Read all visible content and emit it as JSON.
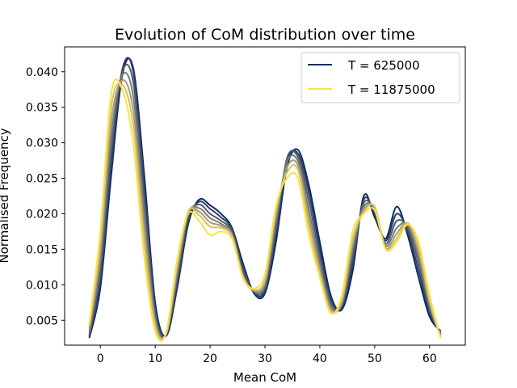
{
  "chart_data": {
    "type": "line",
    "title": "Evolution of CoM distribution over time",
    "xlabel": "Mean CoM",
    "ylabel": "Normalised Frequency",
    "xlim": [
      -6.5,
      66.5
    ],
    "ylim": [
      0.0015,
      0.0435
    ],
    "xticks": [
      0,
      10,
      20,
      30,
      40,
      50,
      60
    ],
    "yticks": [
      0.005,
      0.01,
      0.015,
      0.02,
      0.025,
      0.03,
      0.035,
      0.04
    ],
    "ytick_labels": [
      "0.005",
      "0.010",
      "0.015",
      "0.020",
      "0.025",
      "0.030",
      "0.035",
      "0.040"
    ],
    "grid": false,
    "legend_position": "top-right",
    "legend": [
      {
        "label": "T = 625000",
        "color": "#0b2b5c"
      },
      {
        "label": "T = 11875000",
        "color": "#fbe144"
      }
    ],
    "x": [
      -2,
      0,
      2,
      4,
      6,
      8,
      10,
      12,
      14,
      16,
      18,
      20,
      22,
      24,
      26,
      28,
      30,
      32,
      34,
      36,
      38,
      40,
      42,
      44,
      46,
      48,
      50,
      52,
      54,
      56,
      58,
      60,
      62
    ],
    "series": [
      {
        "name": "T = 625000",
        "color": "#0b2b5c",
        "values": [
          0.0025,
          0.0095,
          0.0255,
          0.0395,
          0.0405,
          0.0255,
          0.0075,
          0.0028,
          0.0095,
          0.0185,
          0.022,
          0.0212,
          0.02,
          0.018,
          0.013,
          0.0088,
          0.0088,
          0.016,
          0.0265,
          0.029,
          0.024,
          0.016,
          0.0085,
          0.0065,
          0.012,
          0.0225,
          0.0195,
          0.0165,
          0.021,
          0.017,
          0.011,
          0.0055,
          0.0035
        ]
      },
      {
        "color": "#2b3f6e",
        "values": [
          0.0027,
          0.0105,
          0.027,
          0.0403,
          0.04,
          0.024,
          0.0068,
          0.003,
          0.01,
          0.019,
          0.0217,
          0.0207,
          0.0195,
          0.0178,
          0.0125,
          0.0089,
          0.0092,
          0.017,
          0.0272,
          0.0285,
          0.023,
          0.015,
          0.008,
          0.0068,
          0.013,
          0.022,
          0.02,
          0.0162,
          0.02,
          0.0175,
          0.012,
          0.006,
          0.0033
        ]
      },
      {
        "color": "#545b6f",
        "values": [
          0.003,
          0.0118,
          0.029,
          0.04,
          0.0385,
          0.022,
          0.006,
          0.003,
          0.0108,
          0.0196,
          0.0213,
          0.02,
          0.019,
          0.0175,
          0.012,
          0.009,
          0.0096,
          0.018,
          0.0278,
          0.028,
          0.0218,
          0.014,
          0.0075,
          0.007,
          0.014,
          0.0215,
          0.0203,
          0.0158,
          0.019,
          0.018,
          0.013,
          0.0065,
          0.0031
        ]
      },
      {
        "color": "#7c7b78",
        "values": [
          0.0034,
          0.0132,
          0.031,
          0.0395,
          0.0365,
          0.02,
          0.0053,
          0.003,
          0.0115,
          0.02,
          0.0208,
          0.0194,
          0.0186,
          0.0172,
          0.0115,
          0.0091,
          0.01,
          0.019,
          0.0272,
          0.0274,
          0.0205,
          0.013,
          0.007,
          0.0073,
          0.015,
          0.021,
          0.0206,
          0.0155,
          0.018,
          0.0184,
          0.0138,
          0.007,
          0.0029
        ]
      },
      {
        "color": "#a69d75",
        "values": [
          0.0038,
          0.0146,
          0.033,
          0.0388,
          0.0345,
          0.018,
          0.0047,
          0.0031,
          0.0122,
          0.0202,
          0.0203,
          0.0188,
          0.0183,
          0.017,
          0.0112,
          0.0092,
          0.0104,
          0.0198,
          0.0265,
          0.0268,
          0.0193,
          0.0122,
          0.0066,
          0.0076,
          0.0158,
          0.0206,
          0.0208,
          0.0152,
          0.0172,
          0.0186,
          0.0146,
          0.0074,
          0.0027
        ]
      },
      {
        "color": "#d4c363",
        "values": [
          0.0042,
          0.016,
          0.035,
          0.0382,
          0.0325,
          0.016,
          0.0042,
          0.0032,
          0.0128,
          0.0203,
          0.0198,
          0.0182,
          0.018,
          0.0168,
          0.011,
          0.0093,
          0.0108,
          0.0205,
          0.0258,
          0.0262,
          0.0182,
          0.0115,
          0.0062,
          0.0079,
          0.0165,
          0.0202,
          0.021,
          0.015,
          0.0165,
          0.0187,
          0.0152,
          0.0078,
          0.0025
        ]
      },
      {
        "name": "T = 11875000",
        "color": "#fbe144",
        "values": [
          0.0045,
          0.0175,
          0.037,
          0.0375,
          0.03,
          0.014,
          0.0035,
          0.0033,
          0.0135,
          0.02,
          0.019,
          0.017,
          0.0175,
          0.0165,
          0.011,
          0.0095,
          0.0115,
          0.021,
          0.025,
          0.025,
          0.017,
          0.011,
          0.006,
          0.0085,
          0.0175,
          0.02,
          0.0205,
          0.015,
          0.016,
          0.0185,
          0.016,
          0.0085,
          0.0025
        ]
      }
    ]
  }
}
